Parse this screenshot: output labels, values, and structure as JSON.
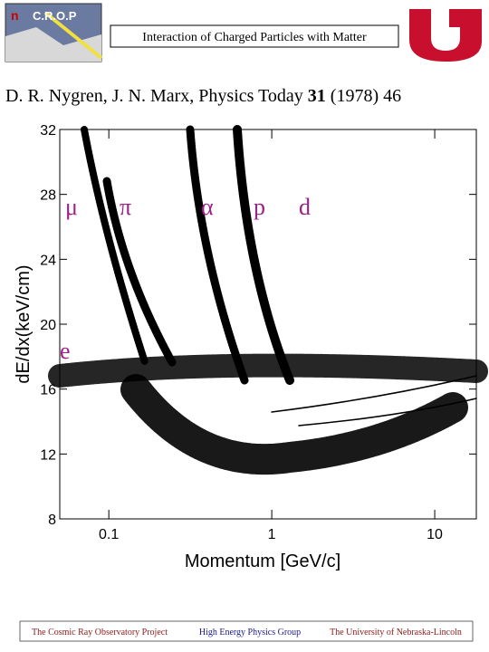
{
  "header": {
    "logo_text": "C.R.O.P",
    "title": "Interaction of Charged Particles with Matter"
  },
  "citation": {
    "authors": "D. R. Nygren, J. N. Marx, Physics Today",
    "volume": "31",
    "rest": "(1978) 46"
  },
  "chart_data": {
    "type": "scatter",
    "x_label": "Momentum [GeV/c]",
    "y_label": "dE/dx(keV/cm)",
    "xscale": "log",
    "xlim": [
      0.05,
      18
    ],
    "xticks": [
      0.1,
      1,
      10
    ],
    "ylim": [
      8,
      32
    ],
    "yticks": [
      8,
      12,
      16,
      20,
      24,
      28,
      32
    ],
    "annotations": [
      "μ",
      "π",
      "α",
      "p",
      "d",
      "e"
    ]
  },
  "footer": [
    "The Cosmic Ray Observatory Project",
    "High Energy Physics Group",
    "The University of Nebraska-Lincoln"
  ]
}
